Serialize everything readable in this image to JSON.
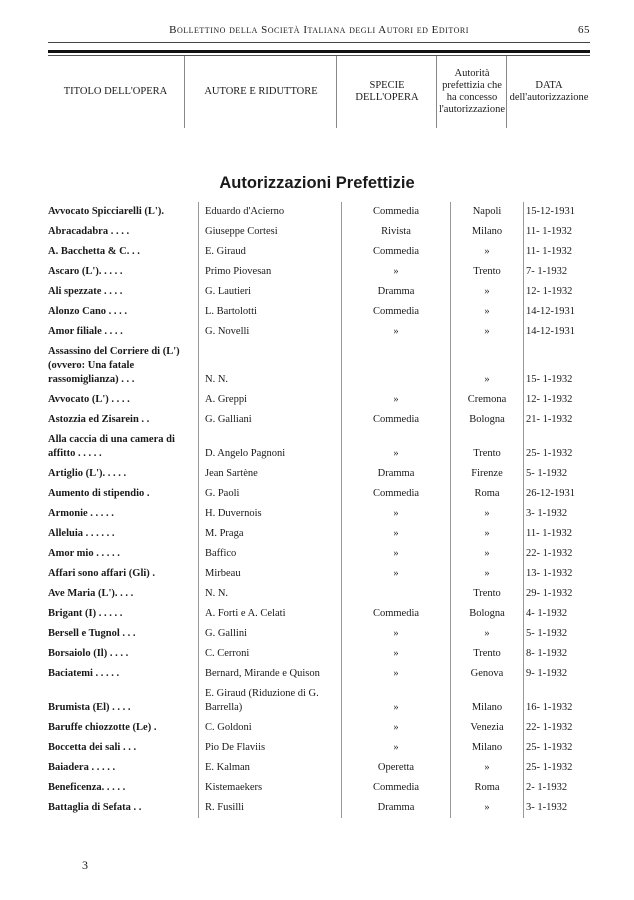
{
  "running_head": {
    "title": "Bollettino della Società Italiana degli Autori ed Editori",
    "page_number": "65"
  },
  "table_header": {
    "title": "TITOLO DELL'OPERA",
    "author": "AUTORE E RIDUTTORE",
    "kind": "SPECIE DELL'OPERA",
    "authority": "Autorità prefettizia che ha concesso l'autorizzazione",
    "date": "DATA dell'autorizzazione"
  },
  "section_title": "Autorizzazioni Prefettizie",
  "rows": [
    {
      "title": "Avvocato Spicciarelli (L').",
      "author": "Eduardo d'Acierno",
      "kind": "Commedia",
      "authority": "Napoli",
      "date": "15-12-1931"
    },
    {
      "title": "Abracadabra . . . .",
      "author": "Giuseppe Cortesi",
      "kind": "Rivista",
      "authority": "Milano",
      "date": "11- 1-1932"
    },
    {
      "title": "A. Bacchetta & C. . .",
      "author": "E. Giraud",
      "kind": "Commedia",
      "authority": "»",
      "date": "11- 1-1932"
    },
    {
      "title": "Ascaro (L'). . . . .",
      "author": "Primo Piovesan",
      "kind": "»",
      "authority": "Trento",
      "date": "7- 1-1932"
    },
    {
      "title": "Ali spezzate . . . .",
      "author": "G. Lautieri",
      "kind": "Dramma",
      "authority": "»",
      "date": "12- 1-1932"
    },
    {
      "title": "Alonzo Cano . . . .",
      "author": "L. Bartolotti",
      "kind": "Commedia",
      "authority": "»",
      "date": "14-12-1931"
    },
    {
      "title": "Amor filiale . . . .",
      "author": "G. Novelli",
      "kind": "»",
      "authority": "»",
      "date": "14-12-1931"
    },
    {
      "title": "Assassino del Corriere di (L') (ovvero: Una fatale rassomiglianza) . . .",
      "author": "N. N.",
      "kind": "",
      "authority": "»",
      "date": "15- 1-1932"
    },
    {
      "title": "Avvocato (L') . . . .",
      "author": "A. Greppi",
      "kind": "»",
      "authority": "Cremona",
      "date": "12- 1-1932"
    },
    {
      "title": "Astozzia ed Zisarein . .",
      "author": "G. Galliani",
      "kind": "Commedia",
      "authority": "Bologna",
      "date": "21- 1-1932"
    },
    {
      "title": "Alla caccia di una camera di affitto . . . . .",
      "author": "D. Angelo Pagnoni",
      "kind": "»",
      "authority": "Trento",
      "date": "25- 1-1932"
    },
    {
      "title": "Artiglio (L'). . . . .",
      "author": "Jean Sartène",
      "kind": "Dramma",
      "authority": "Firenze",
      "date": "5- 1-1932"
    },
    {
      "title": "Aumento di stipendio .",
      "author": "G. Paoli",
      "kind": "Commedia",
      "authority": "Roma",
      "date": "26-12-1931"
    },
    {
      "title": "Armonie . . . . .",
      "author": "H. Duvernois",
      "kind": "»",
      "authority": "»",
      "date": "3- 1-1932"
    },
    {
      "title": "Alleluia . . . . . .",
      "author": "M. Praga",
      "kind": "»",
      "authority": "»",
      "date": "11- 1-1932"
    },
    {
      "title": "Amor mio . . . . .",
      "author": "Baffico",
      "kind": "»",
      "authority": "»",
      "date": "22- 1-1932"
    },
    {
      "title": "Affari sono affari (Gli) .",
      "author": "Mirbeau",
      "kind": "»",
      "authority": "»",
      "date": "13- 1-1932"
    },
    {
      "title": "Ave Maria (L'). . . .",
      "author": "N. N.",
      "kind": "",
      "authority": "Trento",
      "date": "29- 1-1932"
    },
    {
      "title": "Brigant (I) . . . . .",
      "author": "A. Forti e A. Celati",
      "kind": "Commedia",
      "authority": "Bologna",
      "date": "4- 1-1932"
    },
    {
      "title": "Bersell e Tugnol . . .",
      "author": "G. Gallini",
      "kind": "»",
      "authority": "»",
      "date": "5- 1-1932"
    },
    {
      "title": "Borsaiolo (Il) . . . .",
      "author": "C. Cerroni",
      "kind": "»",
      "authority": "Trento",
      "date": "8- 1-1932"
    },
    {
      "title": "Baciatemi . . . . .",
      "author": "Bernard, Mirande e Quison",
      "kind": "»",
      "authority": "Genova",
      "date": "9- 1-1932"
    },
    {
      "title": "Brumista (El) . . . .",
      "author": "E. Giraud (Riduzione di G. Barrella)",
      "kind": "»",
      "authority": "Milano",
      "date": "16- 1-1932"
    },
    {
      "title": "Baruffe chiozzotte (Le) .",
      "author": "C. Goldoni",
      "kind": "»",
      "authority": "Venezia",
      "date": "22- 1-1932"
    },
    {
      "title": "Boccetta dei sali . . .",
      "author": "Pio De Flaviis",
      "kind": "»",
      "authority": "Milano",
      "date": "25- 1-1932"
    },
    {
      "title": "Baiadera . . . . .",
      "author": "E. Kalman",
      "kind": "Operetta",
      "authority": "»",
      "date": "25- 1-1932"
    },
    {
      "title": "Beneficenza. . . . .",
      "author": "Kistemaekers",
      "kind": "Commedia",
      "authority": "Roma",
      "date": "2- 1-1932"
    },
    {
      "title": "Battaglia di Sefata . .",
      "author": "R. Fusilli",
      "kind": "Dramma",
      "authority": "»",
      "date": "3- 1-1932"
    }
  ],
  "folio_signature": "3"
}
